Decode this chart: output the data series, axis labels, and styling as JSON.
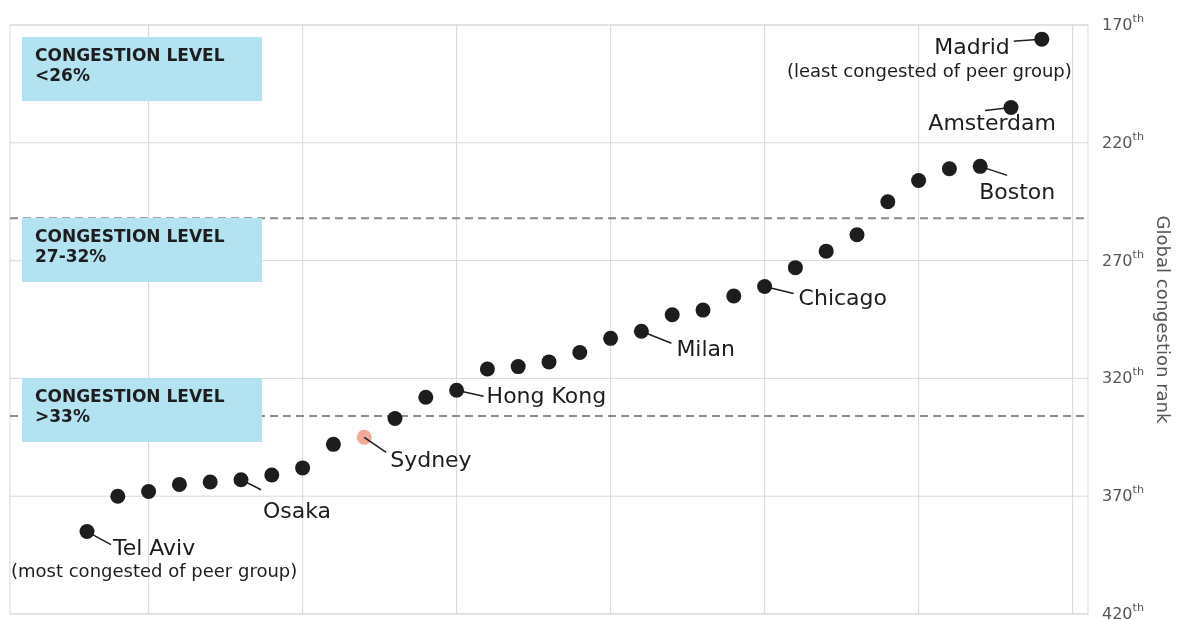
{
  "chart_data": {
    "type": "scatter",
    "ylabel": "Global congestion rank",
    "categories": [
      null,
      null,
      null,
      null,
      null,
      null,
      null,
      null,
      null,
      null,
      null,
      null,
      null,
      null,
      null,
      null,
      null,
      null,
      null,
      null,
      null,
      null,
      null,
      null,
      null,
      null,
      null,
      null,
      null,
      null,
      null,
      null,
      null,
      null,
      null
    ],
    "values": [
      null,
      null,
      385,
      370,
      368,
      365,
      364,
      363,
      361,
      358,
      348,
      345,
      337,
      328,
      325,
      316,
      315,
      313,
      309,
      303,
      300,
      293,
      291,
      285,
      281,
      273,
      266,
      259,
      245,
      236,
      231,
      230,
      205,
      176,
      null
    ],
    "colors": [
      null,
      null,
      "#1d1d1f",
      "#1d1d1f",
      "#1d1d1f",
      "#1d1d1f",
      "#1d1d1f",
      "#1d1d1f",
      "#1d1d1f",
      "#1d1d1f",
      "#1d1d1f",
      "#f4a896",
      "#1d1d1f",
      "#1d1d1f",
      "#1d1d1f",
      "#1d1d1f",
      "#1d1d1f",
      "#1d1d1f",
      "#1d1d1f",
      "#1d1d1f",
      "#1d1d1f",
      "#1d1d1f",
      "#1d1d1f",
      "#1d1d1f",
      "#1d1d1f",
      "#1d1d1f",
      "#1d1d1f",
      "#1d1d1f",
      "#1d1d1f",
      "#1d1d1f",
      "#1d1d1f",
      "#1d1d1f",
      "#1d1d1f",
      "#1d1d1f",
      null
    ],
    "marker": "circle",
    "ylim": [
      420,
      170
    ],
    "yticks": [
      {
        "value": 170,
        "label": "170$^{th}$"
      },
      {
        "value": 220,
        "label": "220$^{th}$"
      },
      {
        "value": 270,
        "label": "270$^{th}$"
      },
      {
        "value": 320,
        "label": "320$^{th}$"
      },
      {
        "value": 370,
        "label": "370$^{th}$"
      },
      {
        "value": 420,
        "label": "420$^{th}$"
      }
    ],
    "grid": true,
    "ref_lines": [
      {
        "axis": "y",
        "value": 252,
        "color": "#8c8c8c",
        "line_style": "dashed"
      },
      {
        "axis": "y",
        "value": 336,
        "color": "#8c8c8c",
        "line_style": "dashed"
      }
    ],
    "annotations": [
      "CONGESTION LEVEL\n<26%",
      "CONGESTION LEVEL\n27-32%",
      "CONGESTION LEVEL\n>33%",
      "Tel Aviv\n(most congested of peer group)",
      "Osaka",
      "Sydney",
      "Hong Kong",
      "Milan",
      "Chicago",
      "Boston",
      "Amsterdam",
      "Madrid\n(least congested of peer group)"
    ]
  }
}
